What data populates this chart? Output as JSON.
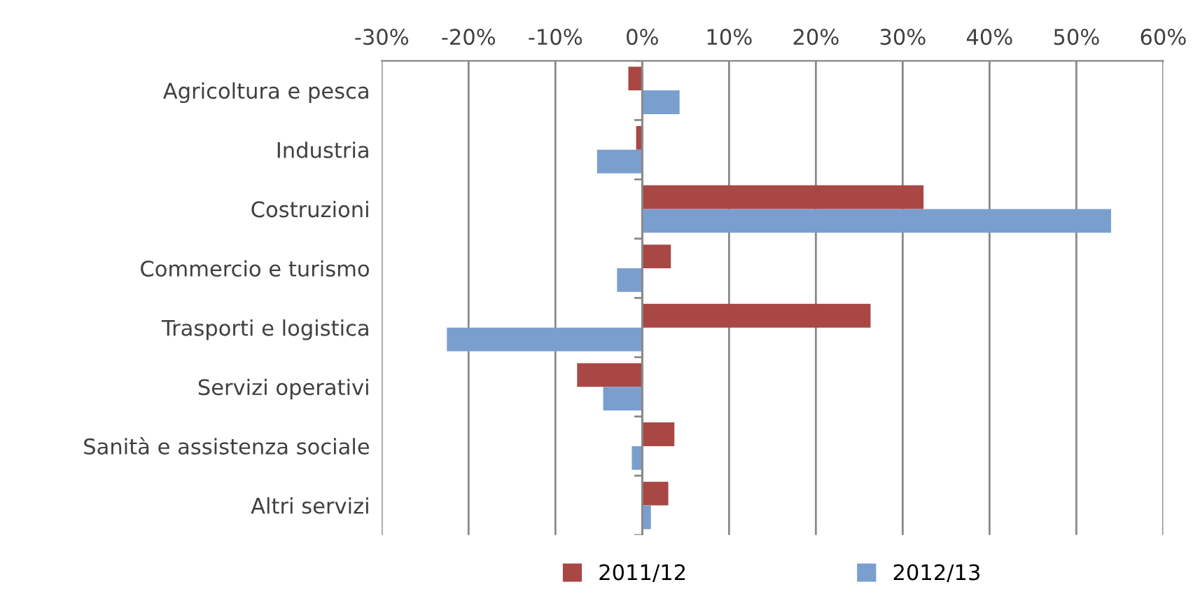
{
  "chart_data": {
    "type": "bar",
    "orientation": "horizontal",
    "categories": [
      "Agricoltura e pesca",
      "Industria",
      "Costruzioni",
      "Commercio e turismo",
      "Trasporti e logistica",
      "Servizi operativi",
      "Sanità e assistenza sociale",
      "Altri servizi"
    ],
    "series": [
      {
        "name": "2011/12",
        "color": "#a94744",
        "values": [
          -1.6,
          -0.7,
          32.4,
          3.3,
          26.3,
          -7.5,
          3.7,
          3.0
        ]
      },
      {
        "name": "2012/13",
        "color": "#7a9fcf",
        "values": [
          4.3,
          -5.2,
          54.0,
          -2.9,
          -22.5,
          -4.5,
          -1.2,
          1.0
        ]
      }
    ],
    "xlim": [
      -30,
      60
    ],
    "xticks": [
      {
        "value": -30,
        "label": "-30%"
      },
      {
        "value": -20,
        "label": "-20%"
      },
      {
        "value": -10,
        "label": "-10%"
      },
      {
        "value": 0,
        "label": "0%"
      },
      {
        "value": 10,
        "label": "10%"
      },
      {
        "value": 20,
        "label": "20%"
      },
      {
        "value": 30,
        "label": "30%"
      },
      {
        "value": 40,
        "label": "40%"
      },
      {
        "value": 50,
        "label": "50%"
      },
      {
        "value": 60,
        "label": "60%"
      }
    ],
    "grid": "x",
    "legend": "bottom"
  }
}
